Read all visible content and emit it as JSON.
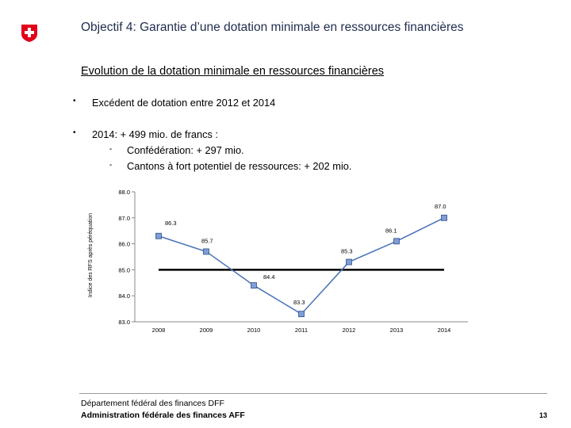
{
  "header": {
    "title": "Objectif 4: Garantie d’une dotation minimale en ressources financières",
    "brand_color": "#e2001a"
  },
  "subtitle": "Evolution de la dotation minimale en ressources financières",
  "bullets": {
    "marker": "•",
    "sub_marker": "▪",
    "item1": "Excédent de dotation entre 2012 et 2014",
    "item2": "2014: + 499 mio. de francs :",
    "sub1": "Confédération: + 297 mio.",
    "sub2": "Cantons à fort potentiel de ressources: + 202 mio."
  },
  "chart_data": {
    "type": "line",
    "title": "",
    "xlabel": "",
    "ylabel": "Indice des RFS après péréquation",
    "categories": [
      "2008",
      "2009",
      "2010",
      "2011",
      "2012",
      "2013",
      "2014"
    ],
    "series": [
      {
        "name": "Indice des RFS après péréquation",
        "values": [
          86.3,
          85.7,
          84.4,
          83.3,
          85.3,
          86.1,
          87.0
        ]
      }
    ],
    "value_labels": [
      "86.3",
      "85.7",
      "84.4",
      "83.3",
      "85.3",
      "86.1",
      "87.0"
    ],
    "reference_line": {
      "value": 85.0,
      "from": "2008",
      "to": "2014"
    },
    "ylim": [
      83.0,
      88.0
    ],
    "yticks": [
      83.0,
      84.0,
      85.0,
      86.0,
      87.0,
      88.0
    ],
    "ytick_labels": [
      "83.0",
      "84.0",
      "85.0",
      "86.0",
      "87.0",
      "88.0"
    ],
    "grid": false,
    "line_color": "#4a73b8",
    "marker_color": "#7f9ed6"
  },
  "footer": {
    "dept": "Département fédéral des finances DFF",
    "admin": "Administration fédérale des finances AFF",
    "page": "13"
  }
}
